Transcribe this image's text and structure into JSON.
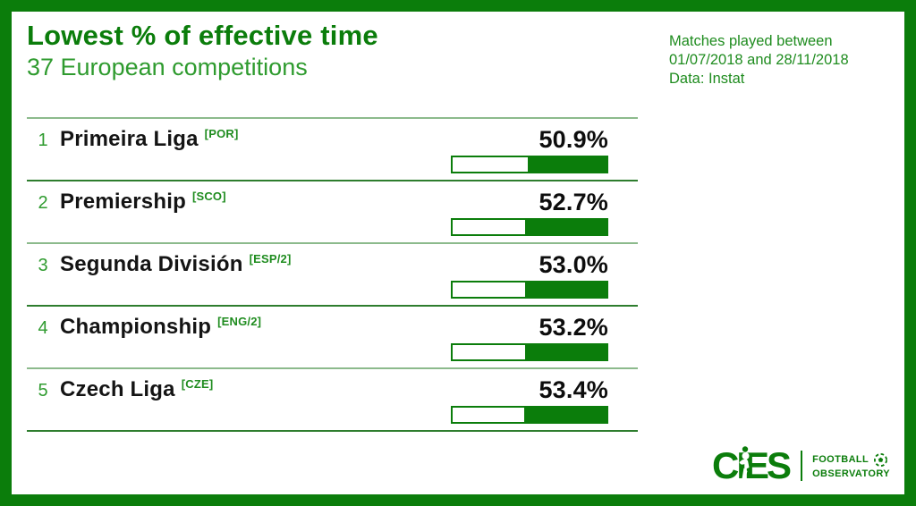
{
  "header": {
    "title": "Lowest % of effective time",
    "subtitle": "37 European competitions",
    "info_lines": [
      "Matches played between",
      "01/07/2018 and 28/11/2018",
      "Data: Instat"
    ]
  },
  "chart_data": {
    "type": "bar",
    "orientation": "horizontal",
    "title": "Lowest % of effective time",
    "subtitle": "37 European competitions",
    "note": "Matches played between 01/07/2018 and 28/11/2018",
    "source": "Instat",
    "categories": [
      "Primeira Liga",
      "Premiership",
      "Segunda División",
      "Championship",
      "Czech Liga"
    ],
    "category_tags": [
      "[POR]",
      "[SCO]",
      "[ESP/2]",
      "[ENG/2]",
      "[CZE]"
    ],
    "values": [
      50.9,
      52.7,
      53.0,
      53.2,
      53.4
    ],
    "value_labels": [
      "50.9%",
      "52.7%",
      "53.0%",
      "53.2%",
      "53.4%"
    ],
    "unit": "%",
    "xlim": [
      0,
      100
    ],
    "grid": false,
    "legend": false
  },
  "rows": [
    {
      "rank": "1",
      "name": "Primeira Liga",
      "tag": "[POR]",
      "value": "50.9%"
    },
    {
      "rank": "2",
      "name": "Premiership",
      "tag": "[SCO]",
      "value": "52.7%"
    },
    {
      "rank": "3",
      "name": "Segunda División",
      "tag": "[ESP/2]",
      "value": "53.0%"
    },
    {
      "rank": "4",
      "name": "Championship",
      "tag": "[ENG/2]",
      "value": "53.2%"
    },
    {
      "rank": "5",
      "name": "Czech Liga",
      "tag": "[CZE]",
      "value": "53.4%"
    }
  ],
  "footer": {
    "logo_text": "CIES",
    "caption_line1": "FOOTBALL",
    "caption_line2": "OBSERVATORY"
  },
  "colors": {
    "brand_green_dark": "#0b7d0b",
    "green_mid": "#2f9b2f",
    "green_info": "#1f8c1f",
    "divider_light": "#8cba8c",
    "divider_dark": "#2e7d2e",
    "text_black": "#141414",
    "background": "#ffffff"
  }
}
